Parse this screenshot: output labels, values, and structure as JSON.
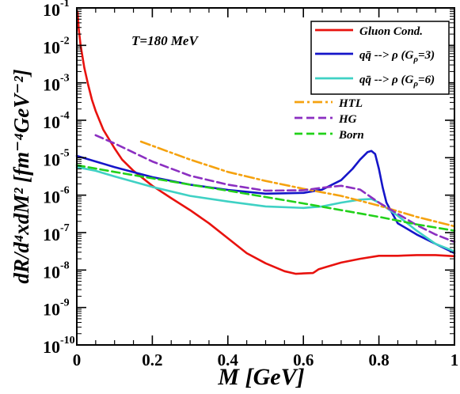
{
  "chart_data": {
    "type": "line",
    "xlabel": "M [GeV]",
    "ylabel": "dR/d⁴xdM² [fm⁻⁴GeV⁻²]",
    "xlim": [
      0,
      1
    ],
    "ylim_log10": [
      -10,
      -1
    ],
    "y_scale": "log",
    "x_ticks": [
      "0",
      "0.2",
      "0.4",
      "0.6",
      "0.8",
      "1"
    ],
    "x_tick_values": [
      0,
      0.2,
      0.4,
      0.6,
      0.8,
      1.0
    ],
    "y_tick_exponents": [
      -1,
      -2,
      -3,
      -4,
      -5,
      -6,
      -7,
      -8,
      -9,
      -10
    ],
    "y_tick_base": "10",
    "annotation": "T=180 MeV",
    "legend_position": "top-right",
    "series": [
      {
        "name": "Gluon Cond.",
        "legend_parts": [
          "Gluon Cond."
        ],
        "color": "#e8120e",
        "dash": "solid",
        "points_log10": [
          [
            0.002,
            -1.1
          ],
          [
            0.005,
            -1.55
          ],
          [
            0.01,
            -2.0
          ],
          [
            0.02,
            -2.6
          ],
          [
            0.03,
            -3.05
          ],
          [
            0.04,
            -3.45
          ],
          [
            0.05,
            -3.75
          ],
          [
            0.07,
            -4.25
          ],
          [
            0.1,
            -4.75
          ],
          [
            0.12,
            -5.05
          ],
          [
            0.15,
            -5.35
          ],
          [
            0.2,
            -5.75
          ],
          [
            0.25,
            -6.08
          ],
          [
            0.3,
            -6.4
          ],
          [
            0.35,
            -6.75
          ],
          [
            0.4,
            -7.15
          ],
          [
            0.45,
            -7.55
          ],
          [
            0.5,
            -7.82
          ],
          [
            0.55,
            -8.03
          ],
          [
            0.58,
            -8.1
          ],
          [
            0.6,
            -8.09
          ],
          [
            0.625,
            -8.08
          ],
          [
            0.63,
            -8.05
          ],
          [
            0.64,
            -7.98
          ],
          [
            0.66,
            -7.92
          ],
          [
            0.7,
            -7.8
          ],
          [
            0.75,
            -7.7
          ],
          [
            0.8,
            -7.62
          ],
          [
            0.85,
            -7.62
          ],
          [
            0.9,
            -7.6
          ],
          [
            0.95,
            -7.6
          ],
          [
            1.0,
            -7.63
          ]
        ]
      },
      {
        "name": "qq̄ --> ρ (Gρ=3)",
        "legend_parts": [
          "qq̄ --> ρ (G",
          "ρ",
          "=3)"
        ],
        "color": "#1515c9",
        "dash": "solid",
        "points_log10": [
          [
            0.0,
            -4.95
          ],
          [
            0.05,
            -5.1
          ],
          [
            0.1,
            -5.25
          ],
          [
            0.2,
            -5.52
          ],
          [
            0.3,
            -5.72
          ],
          [
            0.4,
            -5.86
          ],
          [
            0.5,
            -5.96
          ],
          [
            0.6,
            -5.94
          ],
          [
            0.65,
            -5.85
          ],
          [
            0.7,
            -5.6
          ],
          [
            0.73,
            -5.3
          ],
          [
            0.75,
            -5.05
          ],
          [
            0.77,
            -4.85
          ],
          [
            0.78,
            -4.82
          ],
          [
            0.79,
            -4.9
          ],
          [
            0.8,
            -5.3
          ],
          [
            0.81,
            -5.8
          ],
          [
            0.82,
            -6.2
          ],
          [
            0.85,
            -6.75
          ],
          [
            0.9,
            -7.05
          ],
          [
            0.95,
            -7.3
          ],
          [
            1.0,
            -7.55
          ]
        ]
      },
      {
        "name": "qq̄ --> ρ (Gρ=6)",
        "legend_parts": [
          "qq̄ --> ρ (G",
          "ρ",
          "=6)"
        ],
        "color": "#3fd1c4",
        "dash": "solid",
        "points_log10": [
          [
            0.0,
            -5.25
          ],
          [
            0.05,
            -5.35
          ],
          [
            0.1,
            -5.5
          ],
          [
            0.2,
            -5.78
          ],
          [
            0.3,
            -6.02
          ],
          [
            0.4,
            -6.17
          ],
          [
            0.5,
            -6.3
          ],
          [
            0.6,
            -6.34
          ],
          [
            0.65,
            -6.3
          ],
          [
            0.7,
            -6.2
          ],
          [
            0.75,
            -6.12
          ],
          [
            0.78,
            -6.1
          ],
          [
            0.8,
            -6.2
          ],
          [
            0.85,
            -6.55
          ],
          [
            0.9,
            -6.95
          ],
          [
            0.95,
            -7.3
          ],
          [
            1.0,
            -7.5
          ]
        ]
      },
      {
        "name": "HTL",
        "legend_parts": [
          "HTL"
        ],
        "color": "#f5a20f",
        "dash": "dashdot",
        "points_log10": [
          [
            0.17,
            -4.57
          ],
          [
            0.3,
            -5.05
          ],
          [
            0.4,
            -5.38
          ],
          [
            0.5,
            -5.62
          ],
          [
            0.6,
            -5.83
          ],
          [
            0.7,
            -6.02
          ],
          [
            0.8,
            -6.28
          ],
          [
            0.9,
            -6.58
          ],
          [
            1.0,
            -6.83
          ]
        ]
      },
      {
        "name": "HG",
        "legend_parts": [
          "HG"
        ],
        "color": "#8b2fc1",
        "dash": "dashed",
        "points_log10": [
          [
            0.05,
            -4.4
          ],
          [
            0.1,
            -4.62
          ],
          [
            0.2,
            -5.1
          ],
          [
            0.3,
            -5.48
          ],
          [
            0.4,
            -5.72
          ],
          [
            0.5,
            -5.88
          ],
          [
            0.6,
            -5.87
          ],
          [
            0.65,
            -5.8
          ],
          [
            0.7,
            -5.75
          ],
          [
            0.75,
            -5.85
          ],
          [
            0.8,
            -6.2
          ],
          [
            0.85,
            -6.5
          ],
          [
            0.9,
            -6.8
          ],
          [
            0.95,
            -7.05
          ],
          [
            1.0,
            -7.25
          ]
        ]
      },
      {
        "name": "Born",
        "legend_parts": [
          "Born"
        ],
        "color": "#22d11a",
        "dash": "dashed",
        "points_log10": [
          [
            0.0,
            -5.2
          ],
          [
            0.1,
            -5.38
          ],
          [
            0.2,
            -5.55
          ],
          [
            0.3,
            -5.72
          ],
          [
            0.4,
            -5.88
          ],
          [
            0.5,
            -6.05
          ],
          [
            0.6,
            -6.22
          ],
          [
            0.7,
            -6.4
          ],
          [
            0.8,
            -6.58
          ],
          [
            0.9,
            -6.78
          ],
          [
            1.0,
            -6.95
          ]
        ]
      }
    ]
  }
}
